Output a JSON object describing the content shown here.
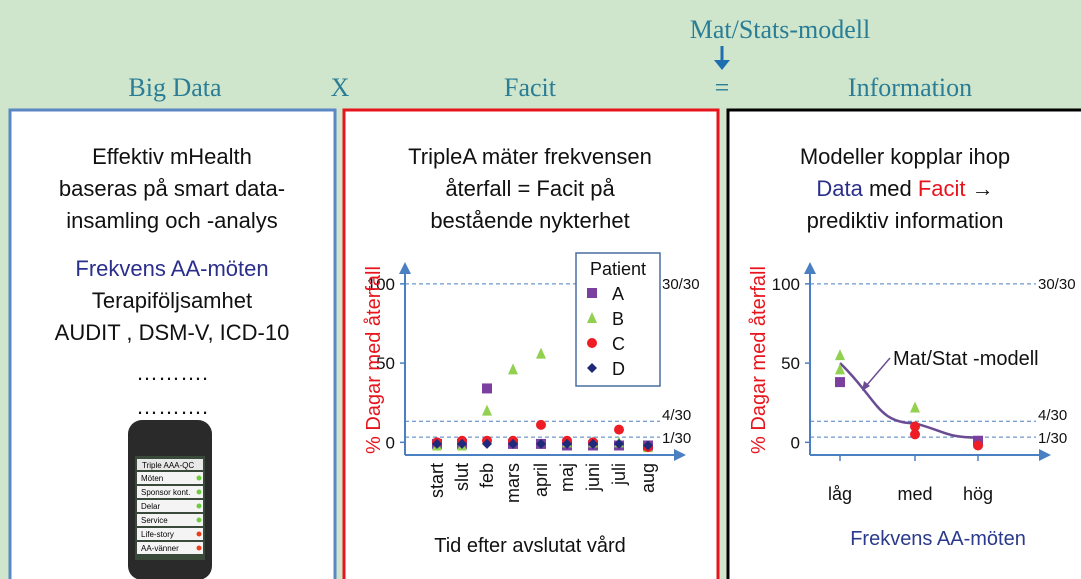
{
  "header": {
    "model_label": "Mat/Stats-modell",
    "big_data": "Big Data",
    "times": "X",
    "facit": "Facit",
    "equals": "=",
    "information": "Information"
  },
  "panels": [
    {
      "lines": [
        "Effektiv mHealth",
        "baseras på smart data-",
        "insamling och -analys"
      ],
      "highlight": "Frekvens AA-möten",
      "more_lines": [
        "Terapiföljsamhet",
        "AUDIT , DSM-V, ICD-10",
        "……….",
        "………."
      ],
      "phone": {
        "title": "Triple AAA-QC",
        "items": [
          "Möten",
          "Sponsor kont.",
          "Delar",
          "Service",
          "Life-story",
          "AA-vänner"
        ]
      }
    },
    {
      "lines": [
        "TripleA mäter frekvensen",
        "återfall =  Facit på",
        "bestående nykterhet"
      ],
      "chart_data": {
        "type": "scatter",
        "y_label": "% Dagar med återfall",
        "x_label": "Tid efter avslutat vård",
        "categories": [
          "start",
          "slut",
          "feb",
          "mars",
          "april",
          "maj",
          "juni",
          "juli",
          "aug"
        ],
        "legend_title": "Patient",
        "series": [
          {
            "name": "A",
            "color": "#7b3fa0",
            "marker": "square",
            "values": [
              -1,
              -1,
              34,
              -1,
              -1,
              -2,
              -2,
              -2,
              -2
            ]
          },
          {
            "name": "B",
            "color": "#92d050",
            "marker": "triangle",
            "values": [
              -2,
              -2,
              20,
              46,
              56,
              0,
              0,
              0,
              -3
            ]
          },
          {
            "name": "C",
            "color": "#ee1c24",
            "marker": "circle",
            "values": [
              0,
              1,
              1,
              1,
              11,
              1,
              0,
              8,
              -3
            ]
          },
          {
            "name": "D",
            "color": "#1f2a7a",
            "marker": "diamond",
            "values": [
              -1,
              -1,
              -1,
              -1,
              -1,
              -1,
              -1,
              -1,
              -2
            ]
          }
        ],
        "ylim": [
          -8,
          110
        ],
        "yticks": [
          0,
          50,
          100
        ],
        "reference_lines": [
          {
            "value": 100,
            "label": "30/30"
          },
          {
            "value": 13.3,
            "label": "4/30"
          },
          {
            "value": 3.3,
            "label": "1/30"
          }
        ]
      }
    },
    {
      "lines": [
        "Modeller kopplar ihop",
        "prediktiv information"
      ],
      "line2": {
        "data": "Data",
        "mid": "med",
        "facit": "Facit",
        "arrow": "→"
      },
      "chart_data": {
        "type": "scatter",
        "y_label": "% Dagar med återfall",
        "x_label": "Frekvens AA-möten",
        "categories": [
          "låg",
          "med",
          "hög"
        ],
        "series": [
          {
            "color": "#92d050",
            "marker": "triangle",
            "x": [
              "låg",
              "låg",
              "med",
              "hög"
            ],
            "values": [
              55,
              46,
              22,
              0
            ]
          },
          {
            "color": "#7b3fa0",
            "marker": "square",
            "x": [
              "låg",
              "hög"
            ],
            "values": [
              38,
              1
            ]
          },
          {
            "color": "#ee1c24",
            "marker": "circle",
            "x": [
              "med",
              "med",
              "hög"
            ],
            "values": [
              10,
              5,
              -2
            ]
          }
        ],
        "model": {
          "label": "Mat/Stat -modell",
          "color": "#6a4c93",
          "values": [
            50,
            12,
            3
          ]
        },
        "ylim": [
          -8,
          110
        ],
        "yticks": [
          0,
          50,
          100
        ],
        "reference_lines": [
          {
            "value": 100,
            "label": "30/30"
          },
          {
            "value": 13.3,
            "label": "4/30"
          },
          {
            "value": 3.3,
            "label": "1/30"
          }
        ]
      }
    }
  ]
}
